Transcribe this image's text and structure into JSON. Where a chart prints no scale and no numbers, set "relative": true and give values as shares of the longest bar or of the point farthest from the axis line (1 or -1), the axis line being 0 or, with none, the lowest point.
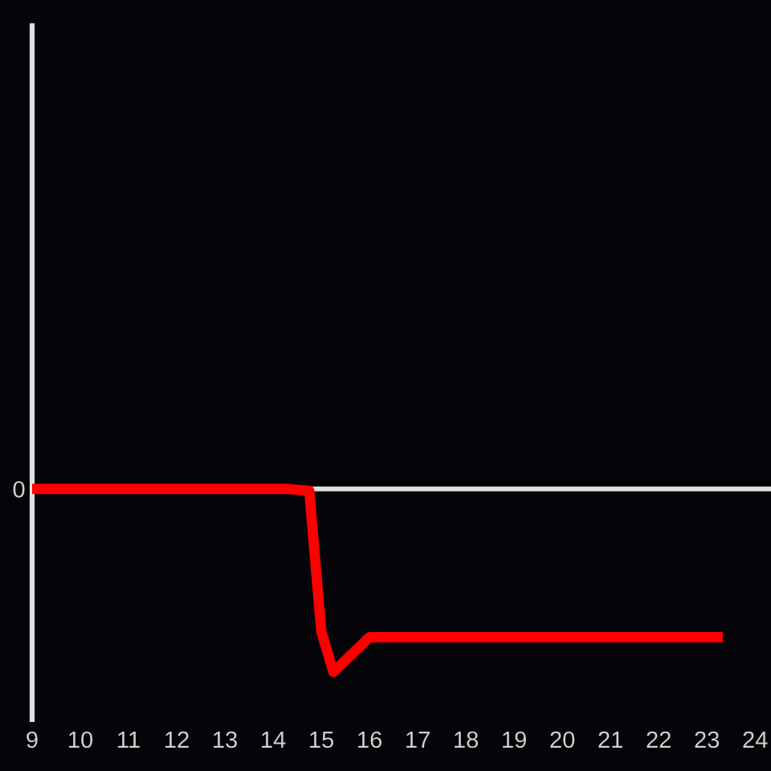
{
  "chart_data": {
    "type": "line",
    "relative": true,
    "x": [
      9,
      14.3,
      14.75,
      15.0,
      15.25,
      16,
      23.33
    ],
    "series": [
      {
        "color": "#ff0000",
        "values": [
          0,
          0,
          -0.01,
          -0.78,
          -1,
          -0.81,
          -0.81
        ]
      }
    ],
    "xlim": [
      9,
      24.33
    ],
    "xticks": [
      9,
      10,
      11,
      12,
      13,
      14,
      15,
      16,
      17,
      18,
      19,
      20,
      21,
      22,
      23,
      24
    ],
    "ref_lines": [
      {
        "axis": "y",
        "value": 0,
        "label": "0",
        "color": "#e0e0e0"
      }
    ],
    "grid": false
  }
}
